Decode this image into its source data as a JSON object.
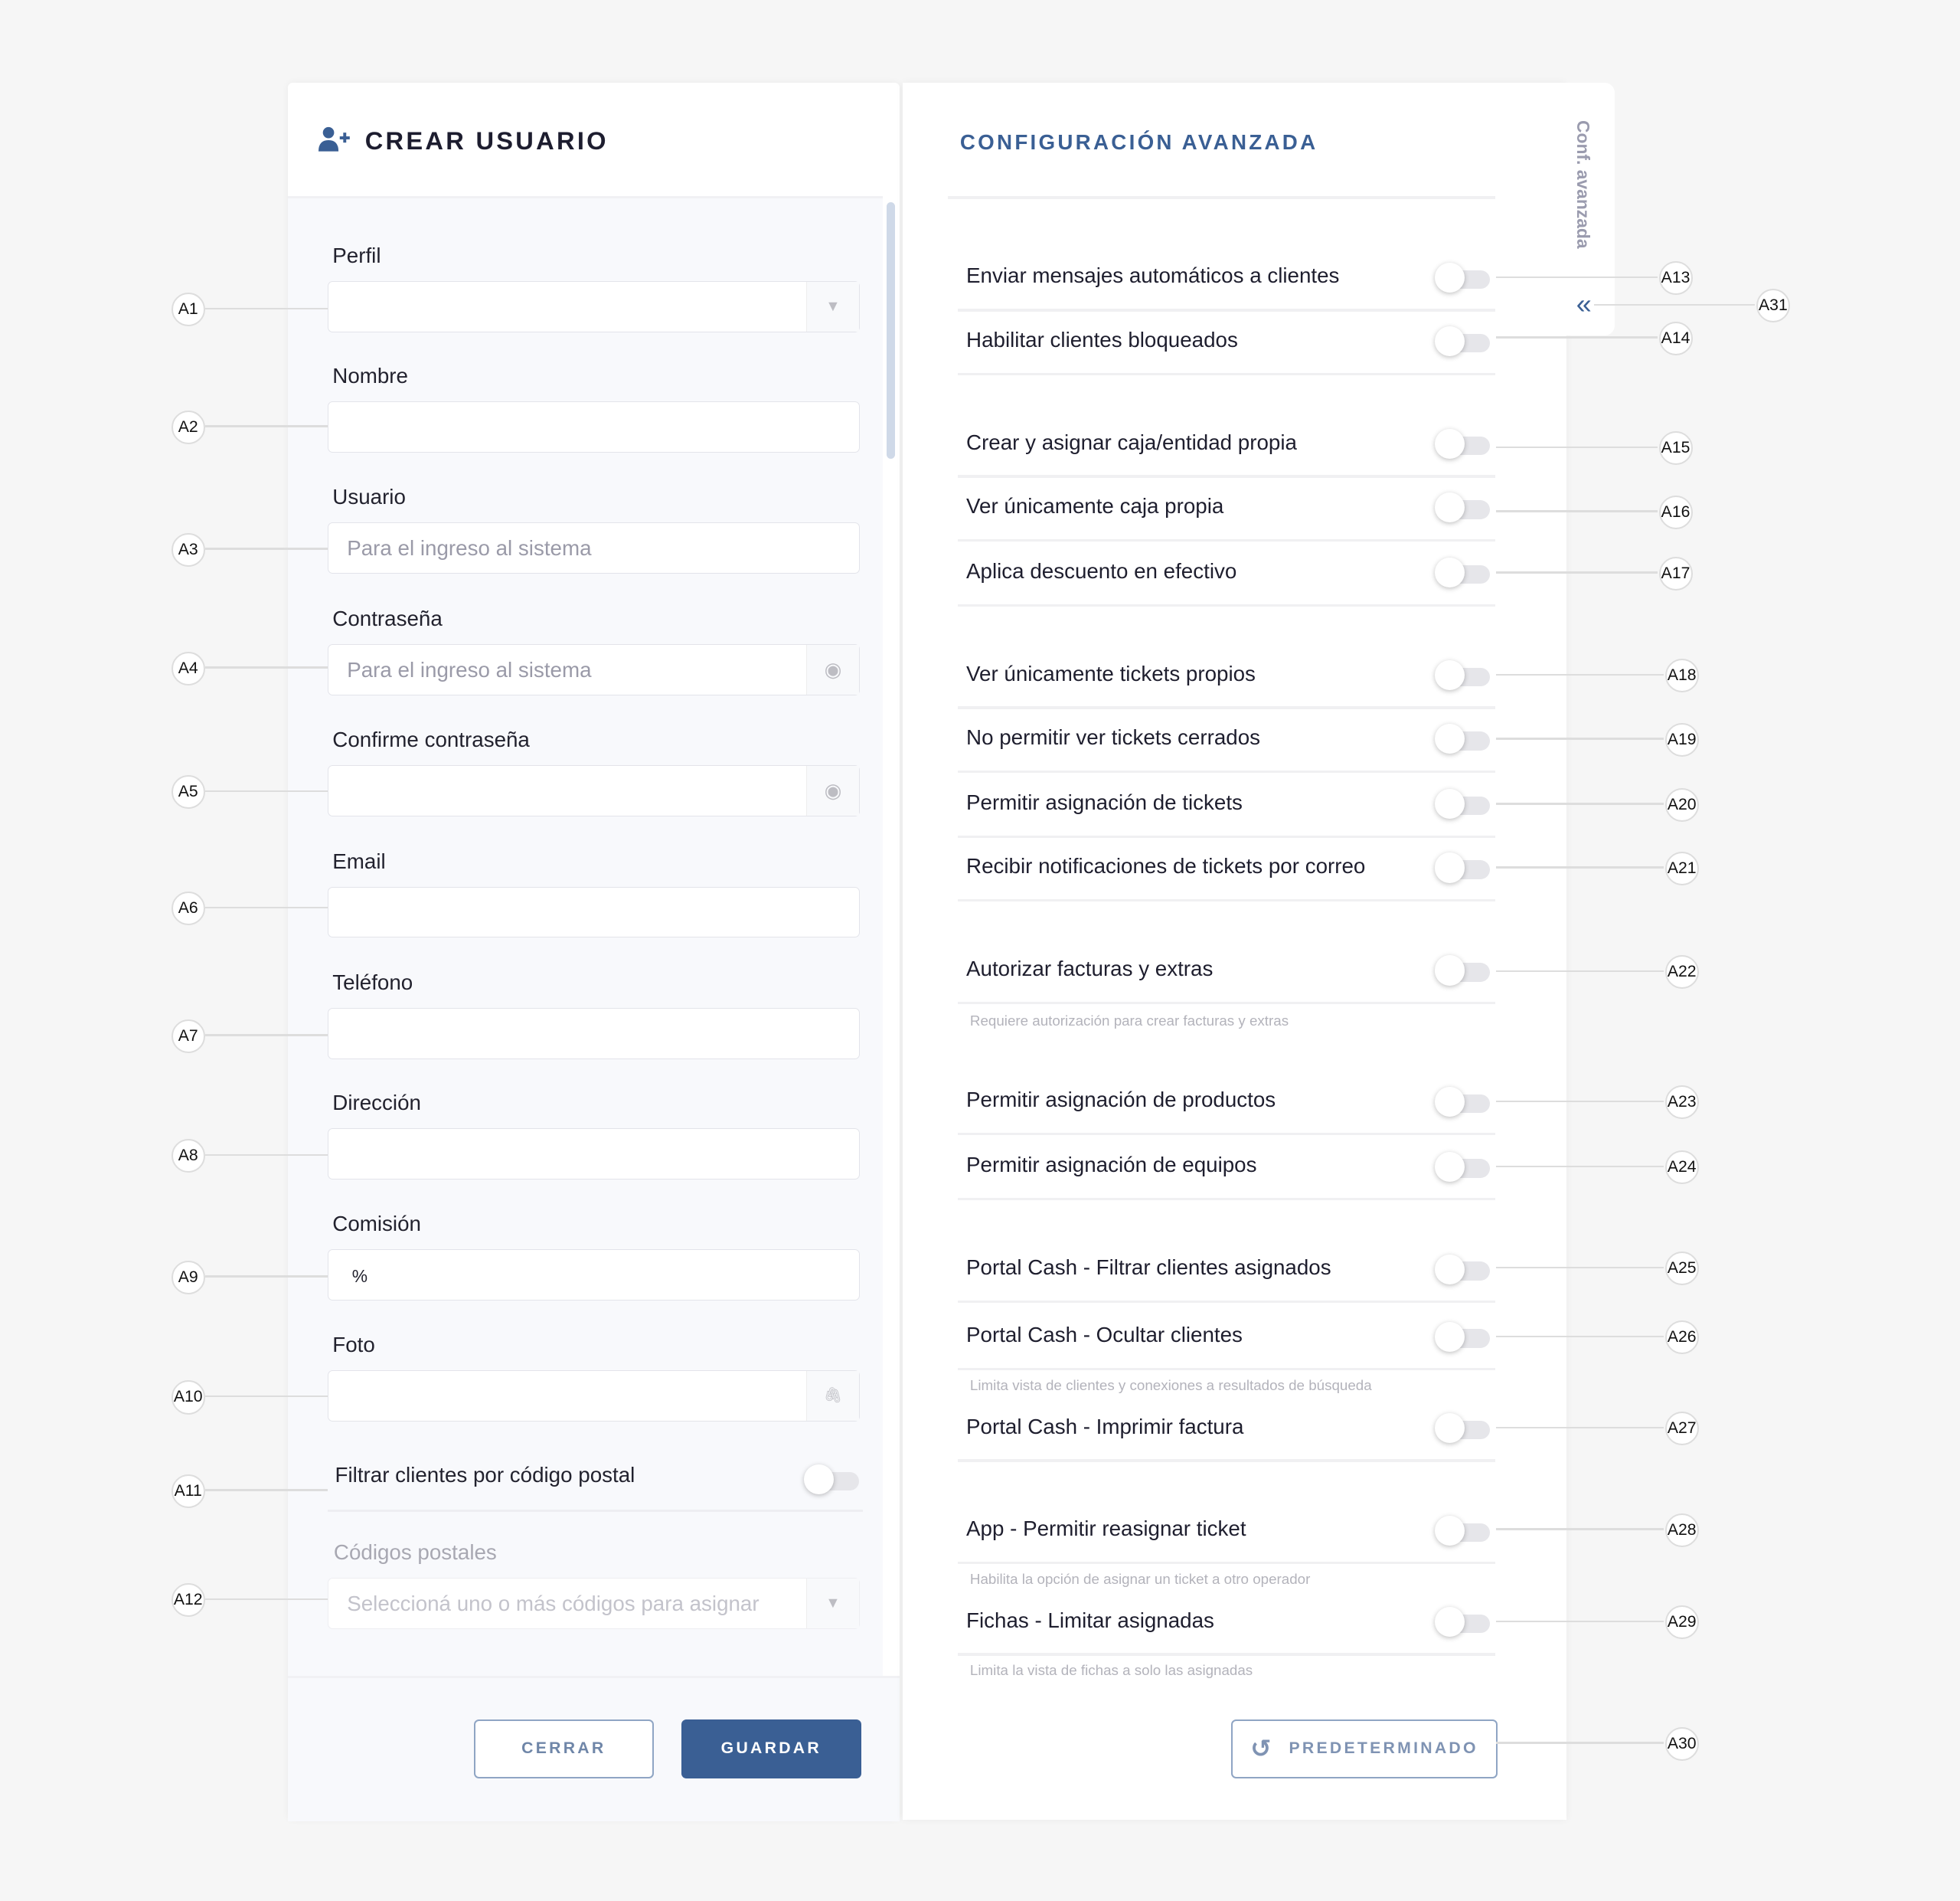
{
  "left": {
    "title": "CREAR USUARIO",
    "title_icon": "user-plus-icon",
    "fields": [
      {
        "label": "Perfil",
        "value": "",
        "placeholder": "",
        "addon": "chevron-down-icon"
      },
      {
        "label": "Nombre",
        "value": "",
        "placeholder": ""
      },
      {
        "label": "Usuario",
        "value": "",
        "placeholder": "Para el ingreso al sistema"
      },
      {
        "label": "Contraseña",
        "value": "",
        "placeholder": "Para el ingreso al sistema",
        "addon": "eye-icon"
      },
      {
        "label": "Confirme contraseña",
        "value": "",
        "placeholder": "",
        "addon": "eye-icon"
      },
      {
        "label": "Email",
        "value": "",
        "placeholder": ""
      },
      {
        "label": "Teléfono",
        "value": "",
        "placeholder": ""
      },
      {
        "label": "Dirección",
        "value": "",
        "placeholder": ""
      },
      {
        "label": "Comisión",
        "value": "",
        "placeholder": "%"
      },
      {
        "label": "Foto",
        "value": "",
        "placeholder": "",
        "addon": "paperclip-icon"
      }
    ],
    "filter_toggle": {
      "label": "Filtrar clientes por código postal",
      "on": false
    },
    "postal": {
      "label": "Códigos postales",
      "placeholder": "Seleccioná uno o más códigos para asignar"
    },
    "close_label": "CERRAR",
    "save_label": "GUARDAR"
  },
  "right": {
    "title": "CONFIGURACIÓN AVANZADA",
    "side_tab": "Conf. avanzada",
    "collapse_icon": "double-chevron-left-icon",
    "toggles": [
      {
        "label": "Enviar mensajes automáticos a clientes",
        "on": false
      },
      {
        "label": "Habilitar clientes bloqueados",
        "on": false
      },
      {
        "label": "Crear y asignar caja/entidad propia",
        "on": false
      },
      {
        "label": "Ver únicamente caja propia",
        "on": false
      },
      {
        "label": "Aplica descuento en efectivo",
        "on": false
      },
      {
        "label": "Ver únicamente tickets propios",
        "on": false
      },
      {
        "label": "No permitir ver tickets cerrados",
        "on": false
      },
      {
        "label": "Permitir asignación de tickets",
        "on": false
      },
      {
        "label": "Recibir notificaciones de tickets por correo",
        "on": false
      },
      {
        "label": "Autorizar facturas  y extras",
        "on": false,
        "hint": "Requiere autorización para crear facturas y extras"
      },
      {
        "label": "Permitir asignación de productos",
        "on": false
      },
      {
        "label": "Permitir asignación de equipos",
        "on": false
      },
      {
        "label": "Portal Cash - Filtrar clientes asignados",
        "on": false
      },
      {
        "label": "Portal Cash - Ocultar clientes",
        "on": false,
        "hint": "Limita vista de clientes y conexiones a resultados de búsqueda"
      },
      {
        "label": "Portal Cash - Imprimir factura",
        "on": false
      },
      {
        "label": "App - Permitir reasignar ticket",
        "on": false,
        "hint": "Habilita la opción de asignar un ticket a otro operador"
      },
      {
        "label": "Fichas - Limitar asignadas",
        "on": false,
        "hint": "Limita la vista de fichas a solo las asignadas"
      }
    ],
    "default_label": "PREDETERMINADO",
    "default_icon": "reset-icon"
  },
  "callouts": [
    "A1",
    "A2",
    "A3",
    "A4",
    "A5",
    "A6",
    "A7",
    "A8",
    "A9",
    "A10",
    "A11",
    "A12",
    "A13",
    "A14",
    "A15",
    "A16",
    "A17",
    "A18",
    "A19",
    "A20",
    "A21",
    "A22",
    "A23",
    "A24",
    "A25",
    "A26",
    "A27",
    "A28",
    "A29",
    "A30",
    "A31"
  ],
  "colors": {
    "primary": "#3a5f94",
    "accent_title": "#3a5f94",
    "bg": "#f6f6f6"
  }
}
